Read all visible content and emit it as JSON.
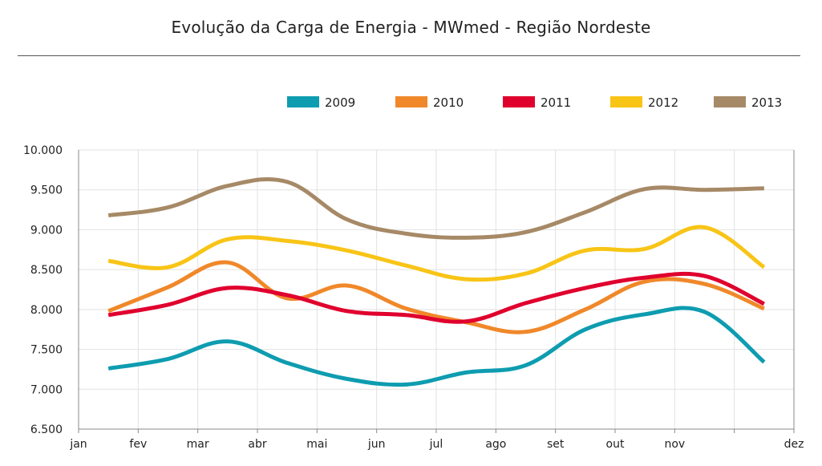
{
  "title": "Evolução da Carga de Energia - MWmed - Região Nordeste",
  "chart_data": {
    "type": "line",
    "title": "Evolução da Carga de Energia - MWmed - Região Nordeste",
    "xlabel": "",
    "ylabel": "",
    "categories": [
      "jan",
      "fev",
      "mar",
      "abr",
      "mai",
      "jun",
      "jul",
      "ago",
      "set",
      "out",
      "nov",
      "dez"
    ],
    "y_tick_labels": [
      "6.500",
      "7.000",
      "7.500",
      "8.000",
      "8.500",
      "9.000",
      "9.500",
      "10.000"
    ],
    "ylim": [
      6500,
      10000
    ],
    "grid": true,
    "legend_position": "top-right",
    "series": [
      {
        "name": "2009",
        "color": "#0E9CB0",
        "values": [
          7260,
          7380,
          7600,
          7330,
          7130,
          7060,
          7210,
          7300,
          7750,
          7940,
          7970,
          7340
        ]
      },
      {
        "name": "2010",
        "color": "#F0882A",
        "values": [
          7980,
          8280,
          8590,
          8140,
          8300,
          8010,
          7840,
          7720,
          8000,
          8350,
          8320,
          8010
        ]
      },
      {
        "name": "2011",
        "color": "#E0002E",
        "values": [
          7930,
          8060,
          8270,
          8180,
          7980,
          7930,
          7850,
          8080,
          8270,
          8400,
          8420,
          8070
        ]
      },
      {
        "name": "2012",
        "color": "#F8C416",
        "values": [
          8610,
          8530,
          8880,
          8860,
          8740,
          8550,
          8380,
          8450,
          8740,
          8760,
          9030,
          8530
        ]
      },
      {
        "name": "2013",
        "color": "#A68966",
        "values": [
          9180,
          9280,
          9550,
          9600,
          9130,
          8950,
          8900,
          8970,
          9220,
          9510,
          9500,
          9520
        ]
      }
    ]
  }
}
